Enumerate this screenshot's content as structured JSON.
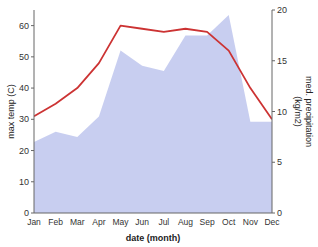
{
  "chart_data": {
    "type": "line",
    "categories": [
      "Jan",
      "Feb",
      "Mar",
      "Apr",
      "May",
      "Jun",
      "Jul",
      "Aug",
      "Sep",
      "Oct",
      "Nov",
      "Dec"
    ],
    "series": [
      {
        "type": "area",
        "axis": "y2",
        "color": "#aab4e8",
        "values": [
          7,
          8,
          7.5,
          9.5,
          16,
          14.5,
          14,
          17.5,
          17.5,
          19.5,
          9,
          9
        ]
      },
      {
        "type": "line",
        "color": "#cc3333",
        "values": [
          31,
          35,
          40,
          48,
          60,
          59,
          58,
          59,
          58,
          52,
          40,
          30
        ]
      }
    ],
    "xlabel": "date (month)",
    "ylabel": "max temp (C)",
    "y2label": "med. precipitation\n(kg/m2)",
    "ylim": [
      0,
      65
    ],
    "yticks": [
      0,
      10,
      20,
      30,
      40,
      50,
      60
    ],
    "y2lim": [
      0,
      20
    ],
    "y2ticks": [
      0,
      5,
      10,
      15,
      20
    ],
    "grid": false
  }
}
